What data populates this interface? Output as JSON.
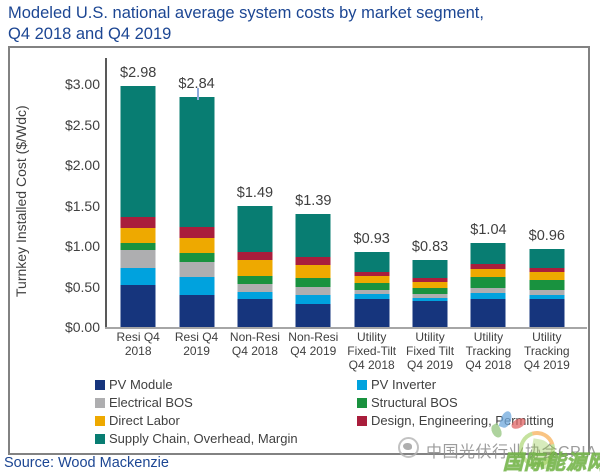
{
  "title": {
    "line1": "Modeled U.S. national average system costs by market segment,",
    "line2": "Q4 2018 and Q4 2019"
  },
  "source": "Source: Wood Mackenzie",
  "colors": {
    "title_blue": "#1c4693",
    "axis_text": "#404040",
    "box_border": "#828282",
    "pv_module": "#16357d",
    "pv_inverter": "#00a2de",
    "electrical_bos": "#aeaeb0",
    "structural_bos": "#19923f",
    "direct_labor": "#eea900",
    "design_engineering_permitting": "#a91e3c",
    "supply_chain_overhead_margin": "#087d72"
  },
  "chart_data": {
    "type": "bar",
    "stacked": true,
    "title": "Modeled U.S. national average system costs by market segment, Q4 2018 and Q4 2019",
    "ylabel": "Turnkey Installed Cost ($/Wdc)",
    "xlabel": "",
    "ylim": [
      0,
      3.3
    ],
    "grid": false,
    "legend_position": "bottom-left, two columns",
    "yticks": [
      {
        "label": "$3.00",
        "value": 3.0
      },
      {
        "label": "$2.50",
        "value": 2.5
      },
      {
        "label": "$2.00",
        "value": 2.0
      },
      {
        "label": "$1.50",
        "value": 1.5
      },
      {
        "label": "$1.00",
        "value": 1.0
      },
      {
        "label": "$0.50",
        "value": 0.5
      },
      {
        "label": "$0.00",
        "value": 0.0
      }
    ],
    "categories": [
      "Resi Q4 2018",
      "Resi Q4 2019",
      "Non-Resi Q4 2018",
      "Non-Resi Q4 2019",
      "Utility Fixed-Tilt Q4 2018",
      "Utility Fixed Tilt Q4 2019",
      "Utility Tracking Q4 2018",
      "Utility Tracking Q4 2019"
    ],
    "category_label_lines": [
      [
        "Resi Q4",
        "2018"
      ],
      [
        "Resi Q4",
        "2019"
      ],
      [
        "Non-Resi",
        "Q4 2018"
      ],
      [
        "Non-Resi",
        "Q4 2019"
      ],
      [
        "Utility",
        "Fixed-Tilt",
        "Q4 2018"
      ],
      [
        "Utility",
        "Fixed Tilt",
        "Q4 2019"
      ],
      [
        "Utility",
        "Tracking",
        "Q4 2018"
      ],
      [
        "Utility",
        "Tracking",
        "Q4 2019"
      ]
    ],
    "totals": [
      2.98,
      2.84,
      1.49,
      1.39,
      0.93,
      0.83,
      1.04,
      0.96
    ],
    "totals_labels": [
      "$2.98",
      "$2.84",
      "$1.49",
      "$1.39",
      "$0.93",
      "$0.83",
      "$1.04",
      "$0.96"
    ],
    "series": [
      {
        "name": "PV Module",
        "color": "#16357d",
        "values": [
          0.52,
          0.4,
          0.35,
          0.29,
          0.35,
          0.32,
          0.35,
          0.34
        ]
      },
      {
        "name": "PV Inverter",
        "color": "#00a2de",
        "values": [
          0.21,
          0.22,
          0.08,
          0.1,
          0.06,
          0.04,
          0.07,
          0.06
        ]
      },
      {
        "name": "Electrical BOS",
        "color": "#aeaeb0",
        "values": [
          0.22,
          0.18,
          0.1,
          0.1,
          0.05,
          0.05,
          0.06,
          0.06
        ]
      },
      {
        "name": "Structural BOS",
        "color": "#19923f",
        "values": [
          0.09,
          0.12,
          0.1,
          0.12,
          0.08,
          0.07,
          0.14,
          0.12
        ]
      },
      {
        "name": "Direct Labor",
        "color": "#eea900",
        "values": [
          0.18,
          0.18,
          0.2,
          0.16,
          0.09,
          0.08,
          0.1,
          0.1
        ]
      },
      {
        "name": "Design, Engineering, Permitting",
        "color": "#a91e3c",
        "values": [
          0.14,
          0.14,
          0.1,
          0.09,
          0.05,
          0.04,
          0.06,
          0.05
        ]
      },
      {
        "name": "Supply Chain, Overhead, Margin",
        "color": "#087d72",
        "values": [
          1.62,
          1.6,
          0.56,
          0.53,
          0.25,
          0.23,
          0.26,
          0.23
        ]
      }
    ],
    "artifact_tick_bar_index": 1
  },
  "watermark": {
    "cpia_text": "中国光伏行业协会CPIA",
    "inen_text": "国际能源网"
  }
}
